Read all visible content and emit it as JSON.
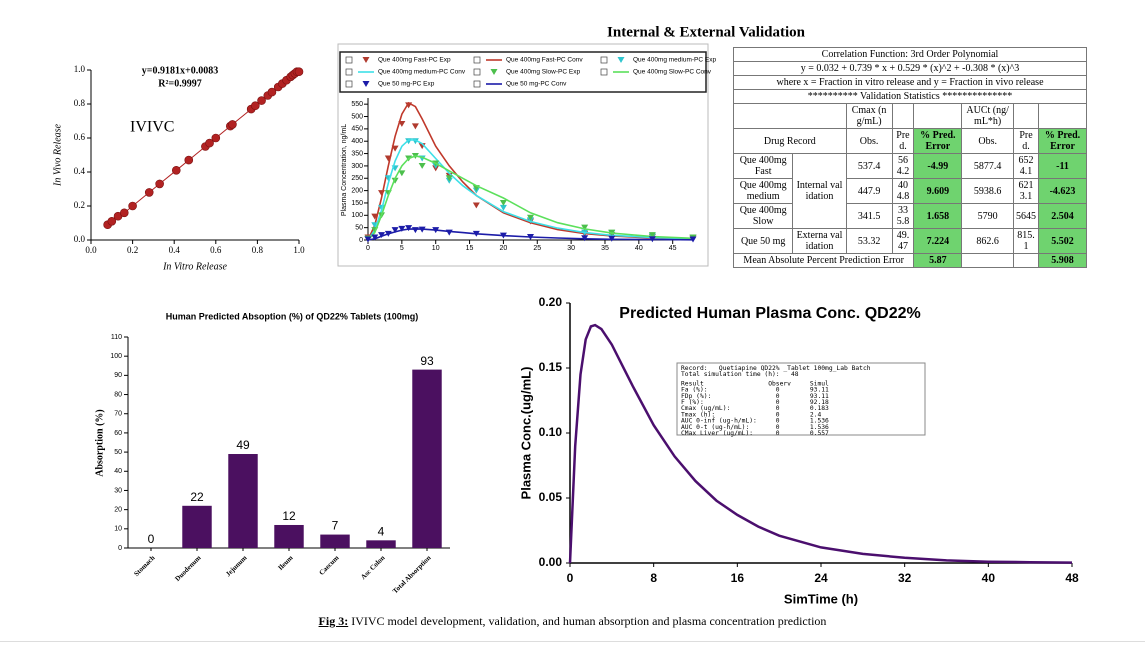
{
  "chart_data": [
    {
      "type": "scatter",
      "equation": "y=0.9181x+0.0083",
      "r2": "R²=0.9997",
      "label": "IVIVC",
      "x_label": "In Vitro Release",
      "y_label": "In Vivo Release",
      "color": "#b22222",
      "x": [
        0.08,
        0.1,
        0.13,
        0.16,
        0.2,
        0.28,
        0.33,
        0.41,
        0.47,
        0.55,
        0.57,
        0.6,
        0.67,
        0.68,
        0.77,
        0.79,
        0.82,
        0.85,
        0.87,
        0.9,
        0.92,
        0.94,
        0.96,
        0.97,
        0.98,
        0.99,
        1.0
      ],
      "values": [
        0.09,
        0.11,
        0.14,
        0.16,
        0.2,
        0.28,
        0.33,
        0.41,
        0.47,
        0.55,
        0.57,
        0.6,
        0.67,
        0.68,
        0.77,
        0.79,
        0.82,
        0.85,
        0.87,
        0.9,
        0.92,
        0.94,
        0.96,
        0.97,
        0.98,
        0.99,
        0.99
      ],
      "xlim": [
        0,
        1
      ],
      "ylim": [
        0,
        1
      ],
      "xticks": [
        {
          "value": 0,
          "label": "0.0"
        },
        0.2,
        0.4,
        0.6,
        0.8,
        {
          "value": 1,
          "label": "1.0"
        }
      ],
      "yticks": [
        {
          "value": 0,
          "label": "0.0"
        },
        0.2,
        0.4,
        0.6,
        0.8,
        {
          "value": 1,
          "label": "1.0"
        }
      ]
    },
    {
      "type": "line",
      "title": "Internal & External Validation",
      "y_label": "Plasma Concentration, ng/mL",
      "x": [
        0,
        1,
        2,
        3,
        4,
        5,
        6,
        7,
        8,
        10,
        12,
        14,
        16,
        20,
        24,
        28,
        32,
        36,
        42,
        48
      ],
      "series": [
        {
          "name": "Que 400mg Fast-PC Exp",
          "mode": "markers",
          "color": "#b03a2e",
          "values": [
            10,
            95,
            190,
            330,
            370,
            470,
            545,
            460,
            380,
            290,
            260,
            null,
            140,
            null,
            75,
            null,
            25,
            20,
            12,
            8
          ]
        },
        {
          "name": "Que 400mg Fast-PC Conv",
          "mode": "line",
          "color": "#c0392b",
          "values": [
            0,
            60,
            170,
            300,
            420,
            510,
            555,
            540,
            490,
            380,
            300,
            235,
            180,
            110,
            70,
            42,
            26,
            16,
            8,
            4
          ]
        },
        {
          "name": "Que 400mg medium-PC Exp",
          "mode": "markers",
          "color": "#2fc6cf",
          "values": [
            5,
            60,
            130,
            250,
            290,
            null,
            400,
            400,
            330,
            300,
            240,
            null,
            200,
            130,
            80,
            null,
            30,
            28,
            15,
            10
          ]
        },
        {
          "name": "Que 400mg medium-PC Conv",
          "mode": "line",
          "color": "#3ee0e8",
          "values": [
            0,
            40,
            120,
            230,
            320,
            380,
            405,
            405,
            390,
            330,
            270,
            220,
            180,
            115,
            75,
            48,
            30,
            19,
            10,
            5
          ]
        },
        {
          "name": "Que 400mg Slow-PC Exp",
          "mode": "markers",
          "color": "#4cbf4c",
          "values": [
            5,
            40,
            100,
            190,
            240,
            270,
            330,
            340,
            300,
            310,
            250,
            null,
            210,
            150,
            90,
            null,
            50,
            30,
            20,
            10
          ]
        },
        {
          "name": "Que 400mg Slow-PC Conv",
          "mode": "line",
          "color": "#5ce05c",
          "values": [
            0,
            30,
            100,
            180,
            250,
            300,
            330,
            340,
            335,
            310,
            280,
            250,
            220,
            170,
            110,
            70,
            45,
            28,
            14,
            7
          ]
        },
        {
          "name": "Que 50 mg-PC Exp",
          "mode": "markers",
          "color": "#1c1ca8",
          "values": [
            2,
            10,
            20,
            25,
            40,
            45,
            48,
            40,
            42,
            40,
            30,
            null,
            25,
            18,
            12,
            null,
            7,
            5,
            3,
            2
          ]
        },
        {
          "name": "Que 50 mg-PC Conv",
          "mode": "line",
          "color": "#1c1ca8",
          "values": [
            0,
            5,
            15,
            25,
            33,
            40,
            44,
            45,
            44,
            40,
            35,
            30,
            25,
            18,
            12,
            8,
            5,
            3,
            2,
            1
          ]
        }
      ],
      "xlim": [
        0,
        48
      ],
      "ylim": [
        0,
        575
      ],
      "xticks": [
        0,
        5,
        10,
        15,
        20,
        25,
        30,
        35,
        40,
        45
      ],
      "yticks": [
        0,
        50,
        100,
        150,
        200,
        250,
        300,
        350,
        400,
        450,
        500,
        550
      ]
    },
    {
      "type": "bar",
      "title": "Human Predicted Absoption (%) of QD22% Tablets (100mg)",
      "y_label": "Absorption (%)",
      "color": "#4b1060",
      "categories": [
        "Stomach",
        "Duodenum",
        "Jejunum",
        "Ileum",
        "Caecum",
        "Asc Colon",
        "Total Absorption"
      ],
      "values": [
        0,
        22,
        49,
        12,
        7,
        4,
        93
      ],
      "ylim": [
        0,
        110
      ],
      "yticks": [
        0,
        10,
        20,
        30,
        40,
        50,
        60,
        70,
        80,
        90,
        100,
        110
      ]
    },
    {
      "type": "line",
      "title": "Predicted Human Plasma Conc. QD22%",
      "x_label": "SimTime (h)",
      "y_label": "Plasma Conc.(ug/mL)",
      "x": [
        0,
        0.5,
        1,
        1.5,
        2,
        2.4,
        3,
        4,
        5,
        6,
        8,
        10,
        12,
        14,
        16,
        18,
        20,
        24,
        28,
        32,
        36,
        40,
        44,
        48
      ],
      "series": [
        {
          "mode": "line",
          "color": "#4b0f6e",
          "values": [
            0,
            0.09,
            0.145,
            0.172,
            0.182,
            0.183,
            0.18,
            0.168,
            0.152,
            0.136,
            0.106,
            0.082,
            0.063,
            0.048,
            0.037,
            0.028,
            0.021,
            0.012,
            0.007,
            0.004,
            0.002,
            0.001,
            0.0006,
            0.0003
          ]
        }
      ],
      "xlim": [
        0,
        48
      ],
      "ylim": [
        0,
        0.2
      ],
      "xticks": [
        0,
        8,
        16,
        24,
        32,
        40,
        48
      ],
      "yticks": [
        {
          "value": 0,
          "label": "0.00"
        },
        0.05,
        {
          "value": 0.1,
          "label": "0.10"
        },
        0.15,
        {
          "value": 0.2,
          "label": "0.20"
        }
      ],
      "inset_lines": [
        "Record:   Quetiapine QD22% _Tablet 100mg_Lab Batch",
        "Total simulation time (h):   48",
        "Result                 Observ     Simul",
        "Fa (%):                  0        93.11",
        "FDp (%):                 0        93.11",
        "F (%):                   0        92.18",
        "Cmax (ug/mL):            0        0.183",
        "Tmax (h):                0        2.4",
        "AUC 0-inf (ug-h/mL):     0        1.536",
        "AUC 0-t (ug-h/mL):       0        1.536",
        "CMax Liver (ug/mL):      0        0.557"
      ]
    }
  ],
  "table": {
    "title_rows": [
      "Correlation Function: 3rd Order Polynomial",
      "y = 0.032 + 0.739 * x  + 0.529 * (x)^2  + -0.308 * (x)^3",
      "where x = Fraction in vitro release and y = Fraction in vivo release",
      "********** Validation Statistics **************"
    ],
    "header": [
      "Cmax (ng/mL)",
      "AUCt (ng/mL*h)"
    ],
    "columns": [
      "Drug Record",
      "Obs.",
      "Pred.",
      "% Pred. Error",
      "Obs.",
      "Pred.",
      "% Pred. Error"
    ],
    "groups": [
      "Internal validation",
      "Externa validation"
    ],
    "rows": [
      [
        "Que 400mg Fast",
        "537.4",
        "564.2",
        "-4.99",
        "5877.4",
        "6524.1",
        "-11"
      ],
      [
        "Que 400mg medium",
        "447.9",
        "404.8",
        "9.609",
        "5938.6",
        "6213.1",
        "-4.623"
      ],
      [
        "Que 400mg Slow",
        "341.5",
        "335.8",
        "1.658",
        "5790",
        "5645",
        "2.504"
      ],
      [
        "Que 50 mg",
        "53.32",
        "49.47",
        "7.224",
        "862.6",
        "815.1",
        "5.502"
      ]
    ],
    "footer": {
      "label": "Mean Absolute Percent Prediction Error",
      "cmax_error": "5.87",
      "auct_error": "5.908"
    }
  },
  "caption": {
    "label": "Fig 3:",
    "text": " IVIVC model development, validation, and  human absorption and plasma concentration prediction"
  }
}
